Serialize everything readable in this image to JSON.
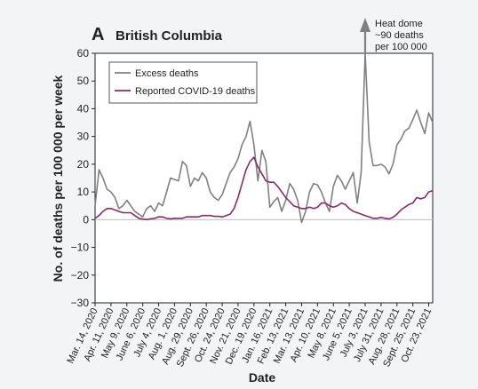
{
  "chart_data": {
    "type": "line",
    "panel_label": "A",
    "title": "British Columbia",
    "xlabel": "Date",
    "ylabel": "No. of deaths per 100 000 per week",
    "ylim": [
      -30,
      60
    ],
    "yticks": [
      60,
      50,
      40,
      30,
      20,
      10,
      0,
      -10,
      -20,
      -30
    ],
    "xlim": [
      "2020-03-14",
      "2021-10-30"
    ],
    "xtick_labels": [
      "Mar. 14, 2020",
      "Apr. 11, 2020",
      "May 9, 2020",
      "June 6, 2020",
      "July 4, 2020",
      "Aug. 1, 2020",
      "Aug. 29, 2020",
      "Sept. 26, 2020",
      "Oct. 24, 2020",
      "Nov. 21, 2020",
      "Dec. 19, 2020",
      "Jan. 16, 2021",
      "Feb. 13, 2021",
      "Mar. 13, 2021",
      "Apr. 10, 2021",
      "May 8, 2021",
      "June 5, 2021",
      "July 3, 2021",
      "July 31, 2021",
      "Aug. 28, 2021",
      "Sept. 25, 2021",
      "Oct. 23, 2021"
    ],
    "xtick_dates": [
      "2020-03-14",
      "2020-04-11",
      "2020-05-09",
      "2020-06-06",
      "2020-07-04",
      "2020-08-01",
      "2020-08-29",
      "2020-09-26",
      "2020-10-24",
      "2020-11-21",
      "2020-12-19",
      "2021-01-16",
      "2021-02-13",
      "2021-03-13",
      "2021-04-10",
      "2021-05-08",
      "2021-06-05",
      "2021-07-03",
      "2021-07-31",
      "2021-08-28",
      "2021-09-25",
      "2021-10-23"
    ],
    "legend": {
      "position": "top-left",
      "entries": [
        "Excess deaths",
        "Reported COVID-19 deaths"
      ]
    },
    "grid": false,
    "series": [
      {
        "name": "Excess deaths",
        "color": "#808080",
        "x": [
          "2020-03-14",
          "2020-03-21",
          "2020-03-28",
          "2020-04-04",
          "2020-04-11",
          "2020-04-18",
          "2020-04-25",
          "2020-05-02",
          "2020-05-09",
          "2020-05-16",
          "2020-05-23",
          "2020-05-30",
          "2020-06-06",
          "2020-06-13",
          "2020-06-20",
          "2020-06-27",
          "2020-07-04",
          "2020-07-11",
          "2020-07-18",
          "2020-07-25",
          "2020-08-01",
          "2020-08-08",
          "2020-08-15",
          "2020-08-22",
          "2020-08-29",
          "2020-09-05",
          "2020-09-12",
          "2020-09-19",
          "2020-09-26",
          "2020-10-03",
          "2020-10-10",
          "2020-10-17",
          "2020-10-24",
          "2020-10-31",
          "2020-11-07",
          "2020-11-14",
          "2020-11-21",
          "2020-11-28",
          "2020-12-05",
          "2020-12-12",
          "2020-12-19",
          "2020-12-26",
          "2021-01-02",
          "2021-01-09",
          "2021-01-16",
          "2021-01-23",
          "2021-01-30",
          "2021-02-06",
          "2021-02-13",
          "2021-02-20",
          "2021-02-27",
          "2021-03-06",
          "2021-03-13",
          "2021-03-20",
          "2021-03-27",
          "2021-04-03",
          "2021-04-10",
          "2021-04-17",
          "2021-04-24",
          "2021-05-01",
          "2021-05-08",
          "2021-05-15",
          "2021-05-22",
          "2021-05-29",
          "2021-06-05",
          "2021-06-12",
          "2021-06-19",
          "2021-06-26",
          "2021-07-03",
          "2021-07-10",
          "2021-07-17",
          "2021-07-24",
          "2021-07-31",
          "2021-08-07",
          "2021-08-14",
          "2021-08-21",
          "2021-08-28",
          "2021-09-04",
          "2021-09-11",
          "2021-09-18",
          "2021-09-25",
          "2021-10-02",
          "2021-10-09",
          "2021-10-16",
          "2021-10-23",
          "2021-10-30"
        ],
        "y": [
          5,
          18,
          15,
          11,
          10,
          8,
          4,
          5,
          7,
          5,
          3,
          2,
          1,
          4,
          5,
          3,
          6,
          5,
          10,
          15,
          14.5,
          14,
          21,
          19.5,
          12,
          15,
          14,
          17,
          15,
          10,
          8,
          7,
          9,
          13,
          17,
          19,
          22,
          27,
          30,
          35.5,
          27,
          14,
          25,
          21,
          4.5,
          6.5,
          8,
          3,
          7,
          13,
          11,
          7,
          -1,
          3,
          10,
          13,
          12.5,
          10,
          6,
          3,
          12,
          16,
          14,
          11,
          14,
          17,
          6,
          17,
          60,
          28,
          19.5,
          19.5,
          20,
          19,
          16.5,
          20,
          27,
          29,
          32,
          33,
          36,
          39.5,
          35,
          31,
          38.5,
          35
        ]
      },
      {
        "name": "Reported COVID-19 deaths",
        "color": "#8b2a6b",
        "x": [
          "2020-03-14",
          "2020-03-21",
          "2020-03-28",
          "2020-04-04",
          "2020-04-11",
          "2020-04-18",
          "2020-04-25",
          "2020-05-02",
          "2020-05-09",
          "2020-05-16",
          "2020-05-23",
          "2020-05-30",
          "2020-06-06",
          "2020-06-13",
          "2020-06-20",
          "2020-06-27",
          "2020-07-04",
          "2020-07-11",
          "2020-07-18",
          "2020-07-25",
          "2020-08-01",
          "2020-08-08",
          "2020-08-15",
          "2020-08-22",
          "2020-08-29",
          "2020-09-05",
          "2020-09-12",
          "2020-09-19",
          "2020-09-26",
          "2020-10-03",
          "2020-10-10",
          "2020-10-17",
          "2020-10-24",
          "2020-10-31",
          "2020-11-07",
          "2020-11-14",
          "2020-11-21",
          "2020-11-28",
          "2020-12-05",
          "2020-12-12",
          "2020-12-19",
          "2020-12-26",
          "2021-01-02",
          "2021-01-09",
          "2021-01-16",
          "2021-01-23",
          "2021-01-30",
          "2021-02-06",
          "2021-02-13",
          "2021-02-20",
          "2021-02-27",
          "2021-03-06",
          "2021-03-13",
          "2021-03-20",
          "2021-03-27",
          "2021-04-03",
          "2021-04-10",
          "2021-04-17",
          "2021-04-24",
          "2021-05-01",
          "2021-05-08",
          "2021-05-15",
          "2021-05-22",
          "2021-05-29",
          "2021-06-05",
          "2021-06-12",
          "2021-06-19",
          "2021-06-26",
          "2021-07-03",
          "2021-07-10",
          "2021-07-17",
          "2021-07-24",
          "2021-07-31",
          "2021-08-07",
          "2021-08-14",
          "2021-08-21",
          "2021-08-28",
          "2021-09-04",
          "2021-09-11",
          "2021-09-18",
          "2021-09-25",
          "2021-10-02",
          "2021-10-09",
          "2021-10-16",
          "2021-10-23",
          "2021-10-30"
        ],
        "y": [
          0.5,
          1.5,
          3,
          4,
          4,
          3.5,
          3,
          2.5,
          2.5,
          2.5,
          1.5,
          0.5,
          0.2,
          0,
          0.3,
          0.5,
          1,
          1,
          0.5,
          0.3,
          0.5,
          0.5,
          0.5,
          1,
          1,
          1,
          1,
          1.5,
          1.5,
          1.5,
          1.2,
          1.2,
          1,
          1.5,
          2,
          4,
          8,
          13,
          18,
          21,
          22.5,
          19,
          16.5,
          14,
          13.5,
          13.5,
          12,
          10,
          8,
          6.5,
          5,
          4.5,
          4,
          4,
          4.5,
          4,
          4.5,
          6,
          6,
          5,
          4.5,
          5,
          6,
          5.5,
          4,
          3,
          2.5,
          2,
          1.5,
          1,
          0.5,
          0.5,
          0.8,
          0.5,
          0.3,
          0.8,
          2,
          3.5,
          4.5,
          5.5,
          6,
          8,
          7.5,
          8,
          10,
          10.5
        ]
      }
    ],
    "annotations": [
      {
        "lines": [
          "Heat dome",
          "~90 deaths",
          "per 100 000"
        ],
        "x": "2021-07-03",
        "y": 60
      }
    ]
  }
}
